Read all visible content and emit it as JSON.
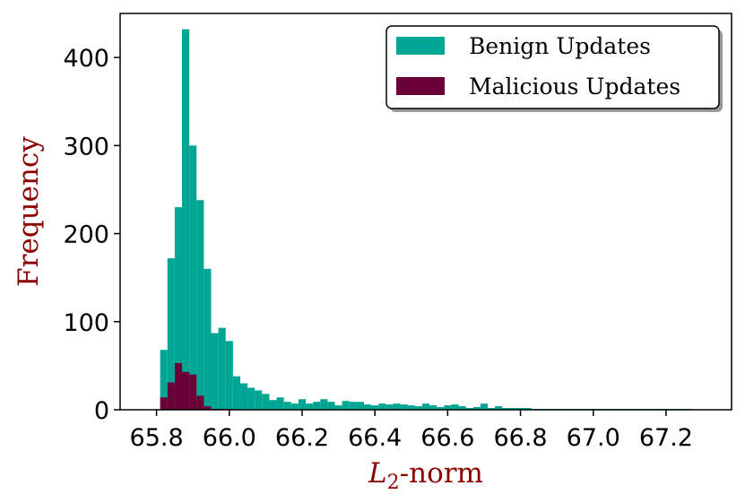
{
  "chart_data": {
    "type": "bar",
    "title": "",
    "xlabel_main": "L",
    "xlabel_sub": "2",
    "xlabel_rest": "-norm",
    "ylabel": "Frequency",
    "label_color": "#8b0000",
    "xlim": [
      65.7,
      67.38
    ],
    "ylim": [
      0,
      450
    ],
    "xticks": [
      65.8,
      66.0,
      66.2,
      66.4,
      66.6,
      66.8,
      67.0,
      67.2
    ],
    "xtick_labels": [
      "65.8",
      "66.0",
      "66.2",
      "66.4",
      "66.6",
      "66.8",
      "67.0",
      "67.2"
    ],
    "yticks": [
      0,
      100,
      200,
      300,
      400
    ],
    "ytick_labels": [
      "0",
      "100",
      "200",
      "300",
      "400"
    ],
    "bin_start": 65.81,
    "bin_width": 0.02,
    "legend_position": "top-right",
    "series": [
      {
        "name": "Benign Updates",
        "color": "#00a693",
        "values": [
          68,
          172,
          230,
          432,
          300,
          238,
          160,
          87,
          93,
          78,
          38,
          30,
          25,
          22,
          18,
          11,
          14,
          9,
          7,
          12,
          7,
          9,
          12,
          9,
          5,
          10,
          9,
          9,
          6,
          5,
          7,
          6,
          7,
          6,
          5,
          4,
          7,
          5,
          3,
          5,
          6,
          4,
          2,
          3,
          7,
          2,
          4,
          2,
          2,
          2,
          2,
          1,
          1,
          1,
          1,
          1,
          1,
          1,
          1,
          1,
          1,
          1,
          1,
          1,
          1,
          1,
          1,
          1,
          1,
          1,
          1,
          1,
          1
        ]
      },
      {
        "name": "Malicious Updates",
        "color": "#6b0038",
        "values": [
          14,
          31,
          53,
          43,
          40,
          16,
          4,
          1,
          1,
          1,
          0,
          0,
          0,
          0,
          0,
          0,
          0,
          0,
          0,
          0,
          0,
          0,
          0,
          0,
          0,
          0,
          0,
          0,
          0,
          0,
          0,
          0,
          0,
          0,
          0,
          0,
          0,
          0,
          0,
          0,
          0,
          0,
          0,
          0,
          0,
          0,
          0,
          0,
          0,
          0,
          0,
          0,
          0,
          0,
          0,
          0,
          0,
          0,
          0,
          0,
          0,
          0,
          0,
          0,
          0,
          0,
          0,
          0,
          0,
          0,
          0,
          0,
          0
        ]
      }
    ]
  }
}
